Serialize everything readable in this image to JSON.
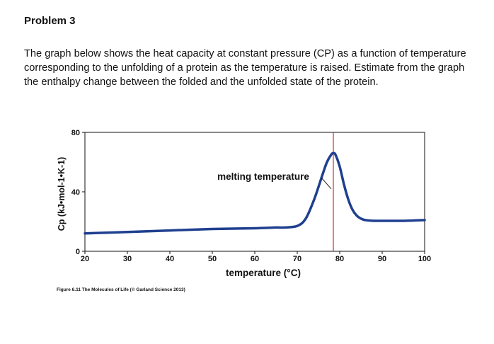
{
  "problem": {
    "title": "Problem 3",
    "text": "The graph below shows the heat capacity at constant pressure (CP) as a function of temperature corresponding to the unfolding of a protein as the temperature is raised. Estimate from the graph the enthalpy change between the folded and the unfolded state of the protein."
  },
  "chart_data": {
    "type": "line",
    "xlabel": "temperature (°C)",
    "ylabel": "Cp (kJ•mol-1•K-1)",
    "xlim": [
      20,
      100
    ],
    "ylim": [
      0,
      80
    ],
    "x_ticks": [
      20,
      30,
      40,
      50,
      60,
      70,
      80,
      90,
      100
    ],
    "y_ticks": [
      0,
      40,
      80
    ],
    "grid": false,
    "series": [
      {
        "color": "#1f3f8f",
        "x": [
          20,
          30,
          40,
          50,
          60,
          65,
          67,
          70,
          72,
          74,
          76,
          77,
          78,
          78.5,
          79,
          80,
          81,
          82,
          83,
          84,
          85,
          86,
          88,
          90,
          95,
          100
        ],
        "y": [
          12,
          13,
          14,
          15,
          15.5,
          16,
          16,
          17,
          22,
          35,
          52,
          60,
          65,
          66,
          65,
          57,
          45,
          35,
          28,
          24,
          22,
          21,
          20.5,
          20.5,
          20.5,
          21
        ]
      }
    ],
    "marker_line": {
      "x": 78.5,
      "color": "#d62a2a"
    },
    "annotation": {
      "text": "melting temperature",
      "x": 62,
      "y": 50,
      "arrow_to_x": 78,
      "arrow_to_y": 42
    }
  },
  "caption": "Figure 6.11 The Molecules of Life (© Garland Science 2013)"
}
